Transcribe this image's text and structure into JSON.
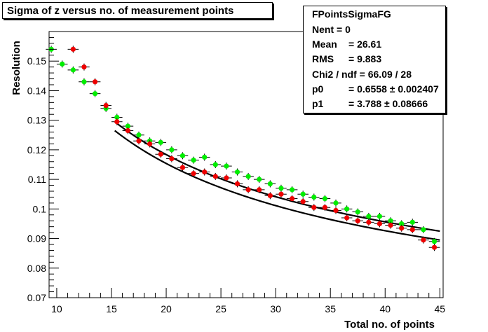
{
  "title_box": {
    "text": "Sigma of z versus no. of measurement points"
  },
  "stats": {
    "title": "FPointsSigmaFG",
    "rows": [
      {
        "label": "Nent = 0",
        "value": ""
      },
      {
        "label": "Mean",
        "value": "=  26.61"
      },
      {
        "label": "RMS",
        "value": "=  9.883"
      },
      {
        "label": "Chi2 / ndf = 66.09 / 28",
        "value": ""
      },
      {
        "label": "p0",
        "value": "= 0.6558  ± 0.002407"
      },
      {
        "label": "p1",
        "value": "= 3.788  ± 0.08666"
      }
    ]
  },
  "chart_data": {
    "type": "scatter",
    "xlabel": "Total no. of points",
    "ylabel": "Resolution",
    "xlim": [
      9.3,
      45.3
    ],
    "ylim": [
      0.07,
      0.16
    ],
    "xticks": [
      "10",
      "15",
      "20",
      "25",
      "30",
      "35",
      "40",
      "45"
    ],
    "yticks": [
      "0.07",
      "0.08",
      "0.09",
      "0.1",
      "0.11",
      "0.12",
      "0.13",
      "0.14",
      "0.15"
    ],
    "ytick_values": [
      0.07,
      0.08,
      0.09,
      0.1,
      0.11,
      0.12,
      0.13,
      0.14,
      0.15
    ],
    "xtick_values": [
      10,
      15,
      20,
      25,
      30,
      35,
      40,
      45
    ],
    "colors": {
      "green": "#00ee00",
      "red": "#ee0000",
      "fit": "#000000"
    },
    "series": [
      {
        "color": "green",
        "x": [
          9.5,
          10.5,
          11.5,
          12.5,
          13.5,
          14.5,
          15.5,
          16.5,
          17.5,
          18.5,
          19.5,
          20.5,
          21.5,
          22.5,
          23.5,
          24.5,
          25.5,
          26.5,
          27.5,
          28.5,
          29.5,
          30.5,
          31.5,
          32.5,
          33.5,
          34.5,
          35.5,
          36.5,
          37.5,
          38.5,
          39.5,
          40.5,
          41.5,
          42.5,
          43.5,
          44.5
        ],
        "y": [
          0.154,
          0.149,
          0.147,
          0.143,
          0.139,
          0.134,
          0.131,
          0.128,
          0.125,
          0.123,
          0.1225,
          0.12,
          0.118,
          0.1165,
          0.1175,
          0.115,
          0.1145,
          0.1125,
          0.111,
          0.11,
          0.1085,
          0.107,
          0.1065,
          0.105,
          0.104,
          0.1035,
          0.102,
          0.1,
          0.099,
          0.0975,
          0.0975,
          0.096,
          0.095,
          0.0955,
          0.093,
          0.089
        ]
      },
      {
        "color": "red",
        "x": [
          11.5,
          12.5,
          13.5,
          14.5,
          15.5,
          16.5,
          17.5,
          18.5,
          19.5,
          20.5,
          21.5,
          22.5,
          23.5,
          24.5,
          25.5,
          26.5,
          27.5,
          28.5,
          29.5,
          30.5,
          31.5,
          32.5,
          33.5,
          34.5,
          35.5,
          36.5,
          37.5,
          38.5,
          39.5,
          40.5,
          41.5,
          42.5,
          43.5,
          44.5
        ],
        "y": [
          0.154,
          0.148,
          0.143,
          0.135,
          0.1295,
          0.1265,
          0.123,
          0.122,
          0.1185,
          0.117,
          0.114,
          0.112,
          0.1125,
          0.111,
          0.1105,
          0.1085,
          0.1065,
          0.1065,
          0.1045,
          0.105,
          0.1035,
          0.1025,
          0.1005,
          0.1005,
          0.0995,
          0.097,
          0.096,
          0.0955,
          0.095,
          0.0945,
          0.0935,
          0.093,
          0.0895,
          0.087
        ]
      }
    ],
    "fits": [
      {
        "x_range": [
          15.3,
          45
        ],
        "y_start": 0.1295,
        "y_end": 0.0925
      },
      {
        "x_range": [
          15.3,
          45
        ],
        "y_start": 0.1265,
        "y_end": 0.0895
      }
    ]
  }
}
